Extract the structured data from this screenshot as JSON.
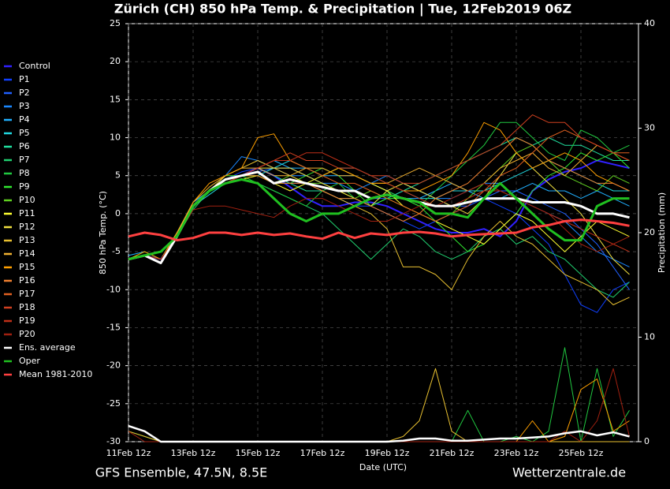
{
  "chart_data": {
    "type": "line",
    "title": "Zürich  (CH)  850 hPa Temp. & Precipitation | Tue, 12Feb2019 06Z",
    "subtitle": "GFS Ensemble, 47.5N, 8.5E",
    "source": "Wetterzentrale.de",
    "x_label": "Date (UTC)",
    "y_label": "850 hPa Temp. (°C)",
    "y2_label": "Precipitation (mm)",
    "categories": [
      "11Feb 12z",
      null,
      null,
      null,
      "13Feb 12z",
      null,
      null,
      null,
      "15Feb 12z",
      null,
      null,
      null,
      "17Feb 12z",
      null,
      null,
      null,
      "19Feb 12z",
      null,
      null,
      null,
      "21Feb 12z",
      null,
      null,
      null,
      "23Feb 12z",
      null,
      null,
      null,
      "25Feb 12z",
      null,
      null,
      null
    ],
    "ylim": [
      -30,
      25
    ],
    "yticks": [
      -30,
      -25,
      -20,
      -15,
      -10,
      -5,
      0,
      5,
      10,
      15,
      20,
      25
    ],
    "y2lim": [
      0,
      40
    ],
    "y2ticks": [
      0,
      10,
      20,
      30,
      40
    ],
    "grid": true,
    "legend": "left",
    "series": [
      {
        "name": "Control",
        "color": "#3020ff",
        "values": [
          -6,
          -5.5,
          -6,
          -3,
          1,
          3,
          4.5,
          5,
          6,
          5,
          3.5,
          2,
          1,
          1,
          1.5,
          1.5,
          1,
          0,
          -1,
          -2,
          -2.5,
          -2.5,
          -2,
          -3,
          -1,
          3,
          4.5,
          5.5,
          6,
          7,
          6.5,
          6
        ]
      },
      {
        "name": "P1",
        "color": "#1040ff",
        "values": [
          -6,
          -5.5,
          -6.5,
          -3,
          1,
          3,
          4.5,
          5.5,
          6,
          5,
          4,
          4,
          3,
          2,
          1,
          1,
          0,
          -1,
          -2,
          -1,
          0,
          1,
          2,
          1,
          0,
          -2,
          -4,
          -8,
          -12,
          -13,
          -10,
          -9
        ]
      },
      {
        "name": "P2",
        "color": "#2060ff",
        "values": [
          -6,
          -5.5,
          -6,
          -2.5,
          1.5,
          3,
          4,
          5,
          5.5,
          6,
          6,
          5,
          4,
          3,
          3,
          2,
          2,
          3,
          3,
          2,
          1,
          1,
          2,
          3,
          3,
          2,
          1,
          0,
          -2,
          -4,
          -7,
          -10
        ]
      },
      {
        "name": "P3",
        "color": "#1a88ff",
        "values": [
          -6,
          -5.5,
          -6.5,
          -3,
          1,
          3,
          5,
          7.5,
          7,
          6,
          5,
          5,
          4,
          4,
          3,
          4,
          5,
          4,
          3,
          2,
          2,
          3,
          4,
          4,
          2,
          1,
          0,
          -1,
          -3,
          -5,
          -6,
          -7
        ]
      },
      {
        "name": "P4",
        "color": "#20b0ff",
        "values": [
          -5.5,
          -5,
          -6,
          -2.5,
          1.5,
          3,
          4,
          5,
          6,
          7,
          6,
          6,
          5,
          5,
          5,
          4,
          3,
          2,
          2,
          3,
          4,
          3,
          2,
          2,
          3,
          4,
          3,
          3,
          2,
          3,
          2,
          1
        ]
      },
      {
        "name": "P5",
        "color": "#20d8e0",
        "values": [
          -6,
          -5.5,
          -6.5,
          -3,
          1,
          2.5,
          4,
          5,
          5,
          6,
          7,
          6,
          5,
          6,
          6,
          5,
          4,
          3,
          2,
          2,
          3,
          3,
          3,
          4,
          5,
          6,
          7,
          6,
          5,
          4,
          3,
          3
        ]
      },
      {
        "name": "P6",
        "color": "#20e0a0",
        "values": [
          -6,
          -5.5,
          -6,
          -3,
          1,
          3,
          4.5,
          5,
          6,
          5,
          4,
          3,
          3,
          2,
          2,
          1,
          2,
          3,
          4,
          5,
          6,
          7,
          8,
          9,
          10,
          9,
          10,
          9,
          9,
          8,
          7,
          7
        ]
      },
      {
        "name": "P7",
        "color": "#20d070",
        "values": [
          -6,
          -5.5,
          -6.5,
          -3,
          0.5,
          3,
          4,
          4.5,
          4,
          3,
          2,
          1,
          0,
          -2,
          -4,
          -6,
          -4,
          -2,
          -3,
          -5,
          -6,
          -5,
          -3,
          -2,
          -4,
          -3,
          -5,
          -6,
          -8,
          -10,
          -11,
          -9
        ]
      },
      {
        "name": "P8",
        "color": "#20c840",
        "values": [
          -6,
          -5.5,
          -6,
          -3,
          1,
          3,
          4,
          5,
          4,
          3,
          2,
          1,
          3,
          4,
          2,
          1,
          3,
          2,
          1,
          3,
          5,
          7,
          9,
          12,
          12,
          10,
          8,
          7,
          11,
          10,
          8,
          9
        ],
        "precip": [
          1,
          0.5,
          0,
          0,
          0,
          0,
          0,
          0,
          0,
          0,
          0,
          0,
          0,
          0,
          0,
          0,
          0,
          0,
          0,
          0,
          0,
          3,
          0,
          0,
          0.5,
          0,
          1,
          9,
          0,
          7,
          0.5,
          3
        ]
      },
      {
        "name": "P9",
        "color": "#30e830",
        "values": [
          -6,
          -5,
          -6,
          -2.5,
          1,
          3,
          5,
          5,
          5,
          4,
          4,
          5,
          6,
          5,
          3,
          1,
          2,
          2,
          1,
          -1,
          -3,
          -5,
          -4,
          -2,
          0,
          3,
          5,
          6,
          8,
          7,
          8,
          6
        ]
      },
      {
        "name": "P10",
        "color": "#60d020",
        "values": [
          -6,
          -5.5,
          -6,
          -3,
          1,
          3,
          4,
          5,
          5,
          4,
          5,
          4,
          4,
          3,
          2,
          3,
          2,
          1,
          0,
          -1,
          0,
          2,
          4,
          6,
          8,
          9,
          7,
          5,
          4,
          3,
          5,
          4
        ]
      },
      {
        "name": "P11",
        "color": "#ffff30",
        "values": [
          -6,
          -5.5,
          -6.5,
          -3,
          1,
          3,
          4,
          4.5,
          5,
          4,
          3,
          4,
          5,
          6,
          5,
          4,
          3,
          1,
          0,
          -1,
          -2,
          -3,
          -4,
          -2,
          0,
          -1,
          -3,
          -5,
          -3,
          -1,
          -2,
          -3
        ]
      },
      {
        "name": "P12",
        "color": "#f0e040",
        "values": [
          -6,
          -5.5,
          -6,
          -2.5,
          1,
          3,
          4,
          5,
          6,
          6,
          6,
          5,
          4,
          3,
          2,
          1,
          3,
          4,
          3,
          2,
          1,
          0,
          2,
          5,
          8,
          6,
          4,
          2,
          0,
          -3,
          -6,
          -8
        ]
      },
      {
        "name": "P13",
        "color": "#e8c030",
        "values": [
          -6,
          -5.5,
          -6.5,
          -3,
          1,
          3,
          5,
          6,
          7,
          6,
          5,
          4,
          3,
          2,
          1,
          0,
          -2,
          -7,
          -7,
          -8,
          -10,
          -6,
          -3,
          -1,
          -3,
          -4,
          -6,
          -8,
          -9,
          -10,
          -12,
          -11
        ],
        "precip": [
          1,
          0.5,
          0,
          0,
          0,
          0,
          0,
          0,
          0,
          0,
          0,
          0,
          0,
          0,
          0,
          0,
          0,
          0.5,
          2,
          7,
          1,
          0,
          0,
          0,
          0,
          0,
          0,
          0,
          0,
          0,
          0,
          0
        ]
      },
      {
        "name": "P14",
        "color": "#f0b030",
        "values": [
          -6,
          -5.5,
          -6,
          -3,
          1.5,
          3.5,
          5,
          6,
          6,
          5,
          5,
          6,
          6,
          5,
          5,
          4,
          4,
          5,
          6,
          5,
          4,
          3,
          4,
          6,
          7,
          8,
          6,
          5,
          7,
          9,
          8,
          7
        ]
      },
      {
        "name": "P15",
        "color": "#ffa000",
        "values": [
          -6,
          -5,
          -6,
          -2.5,
          1.5,
          4,
          5,
          6,
          10,
          10.5,
          7,
          6,
          5,
          6,
          5,
          4,
          4,
          3,
          3,
          4,
          5,
          8,
          12,
          11,
          8,
          6,
          7,
          8,
          7,
          5,
          4,
          3
        ],
        "precip": [
          1.5,
          1,
          0,
          0,
          0,
          0,
          0,
          0,
          0,
          0,
          0,
          0,
          0,
          0,
          0,
          0,
          0,
          0,
          0,
          0,
          0,
          0,
          0,
          0,
          0,
          2,
          0,
          0.5,
          5,
          6,
          1,
          2
        ]
      },
      {
        "name": "P16",
        "color": "#f08030",
        "values": [
          -6,
          -5.5,
          -6.5,
          -3,
          1,
          3,
          4,
          5,
          5,
          4,
          4,
          4,
          3,
          2,
          2,
          1,
          0,
          -1,
          0,
          2,
          3,
          4,
          6,
          8,
          10,
          9,
          7,
          6,
          5,
          4,
          4,
          3
        ]
      },
      {
        "name": "P17",
        "color": "#e06020",
        "values": [
          -6,
          -5.5,
          -6,
          -3,
          1,
          3,
          4,
          5,
          6,
          7,
          7,
          6,
          5,
          4,
          4,
          3,
          2,
          1,
          0,
          -1,
          0,
          1,
          3,
          5,
          6,
          8,
          10,
          11,
          10,
          9,
          8,
          8
        ]
      },
      {
        "name": "P18",
        "color": "#d04020",
        "values": [
          -6,
          -5.5,
          -6.5,
          -3,
          1,
          3,
          4.5,
          5,
          6,
          7,
          8,
          7,
          7,
          6,
          6,
          5,
          5,
          4,
          4,
          5,
          6,
          7,
          8,
          9,
          11,
          13,
          12,
          12,
          10,
          9,
          8,
          7
        ]
      },
      {
        "name": "P19",
        "color": "#c03018",
        "values": [
          -6,
          -5.5,
          -6,
          -3,
          1,
          3,
          4,
          5,
          6,
          7,
          7,
          8,
          8,
          7,
          6,
          5,
          4,
          3,
          2,
          1,
          1,
          2,
          3,
          3,
          2,
          1,
          0,
          -1,
          -2,
          -3,
          -4,
          -5
        ]
      },
      {
        "name": "P20",
        "color": "#a02010",
        "values": [
          -6,
          -5.5,
          -6,
          -3,
          0.5,
          1,
          1,
          0.5,
          0,
          -0.5,
          1,
          2,
          2,
          1,
          0,
          -1,
          -1,
          0,
          1,
          1,
          2,
          3,
          4,
          3,
          2,
          1,
          0,
          -2,
          -4,
          -5,
          -4,
          -3
        ],
        "precip": [
          1,
          0,
          0,
          0,
          0,
          0,
          0,
          0,
          0,
          0,
          0,
          0,
          0,
          0,
          0,
          0,
          0,
          0,
          0,
          0,
          0,
          0,
          0,
          0,
          0,
          0,
          0,
          1,
          0,
          2,
          7,
          0.5
        ]
      },
      {
        "name": "Ens. average",
        "color": "#ffffff",
        "values": [
          -6,
          -5.5,
          -6.5,
          -3,
          1,
          3,
          4.5,
          5,
          5.5,
          4,
          4.5,
          4,
          3.5,
          3,
          3,
          2,
          2.5,
          2,
          1.5,
          1,
          1,
          1.5,
          2,
          2,
          2,
          1.5,
          1.5,
          1.5,
          1,
          0,
          0,
          -0.5
        ],
        "precip": [
          1.5,
          1,
          0,
          0,
          0,
          0,
          0,
          0,
          0,
          0,
          0,
          0,
          0,
          0,
          0,
          0,
          0,
          0.1,
          0.3,
          0.3,
          0.1,
          0.1,
          0.2,
          0.3,
          0.3,
          0.4,
          0.5,
          0.8,
          1,
          0.6,
          0.9,
          0.5
        ]
      },
      {
        "name": "Oper",
        "color": "#20c020",
        "values": [
          -6,
          -5.5,
          -5,
          -3,
          1,
          3,
          4,
          4.5,
          4,
          2,
          0,
          -1,
          0,
          0,
          1,
          2,
          2.5,
          2,
          1.5,
          0,
          0,
          -0.5,
          2,
          4,
          2,
          0,
          -2,
          -3.5,
          -3.5,
          1,
          2,
          2
        ]
      },
      {
        "name": "Mean 1981-2010",
        "color": "#ff4040",
        "values": [
          -3,
          -2.5,
          -2.8,
          -3.5,
          -3.2,
          -2.5,
          -2.5,
          -2.8,
          -2.5,
          -2.8,
          -2.6,
          -3,
          -3.3,
          -2.5,
          -3.2,
          -2.6,
          -2.8,
          -2.5,
          -2.4,
          -2.6,
          -3,
          -2.8,
          -2.7,
          -2.6,
          -2.5,
          -1.8,
          -1.5,
          -1,
          -0.8,
          -1,
          -1.2,
          -1.6
        ]
      }
    ]
  }
}
